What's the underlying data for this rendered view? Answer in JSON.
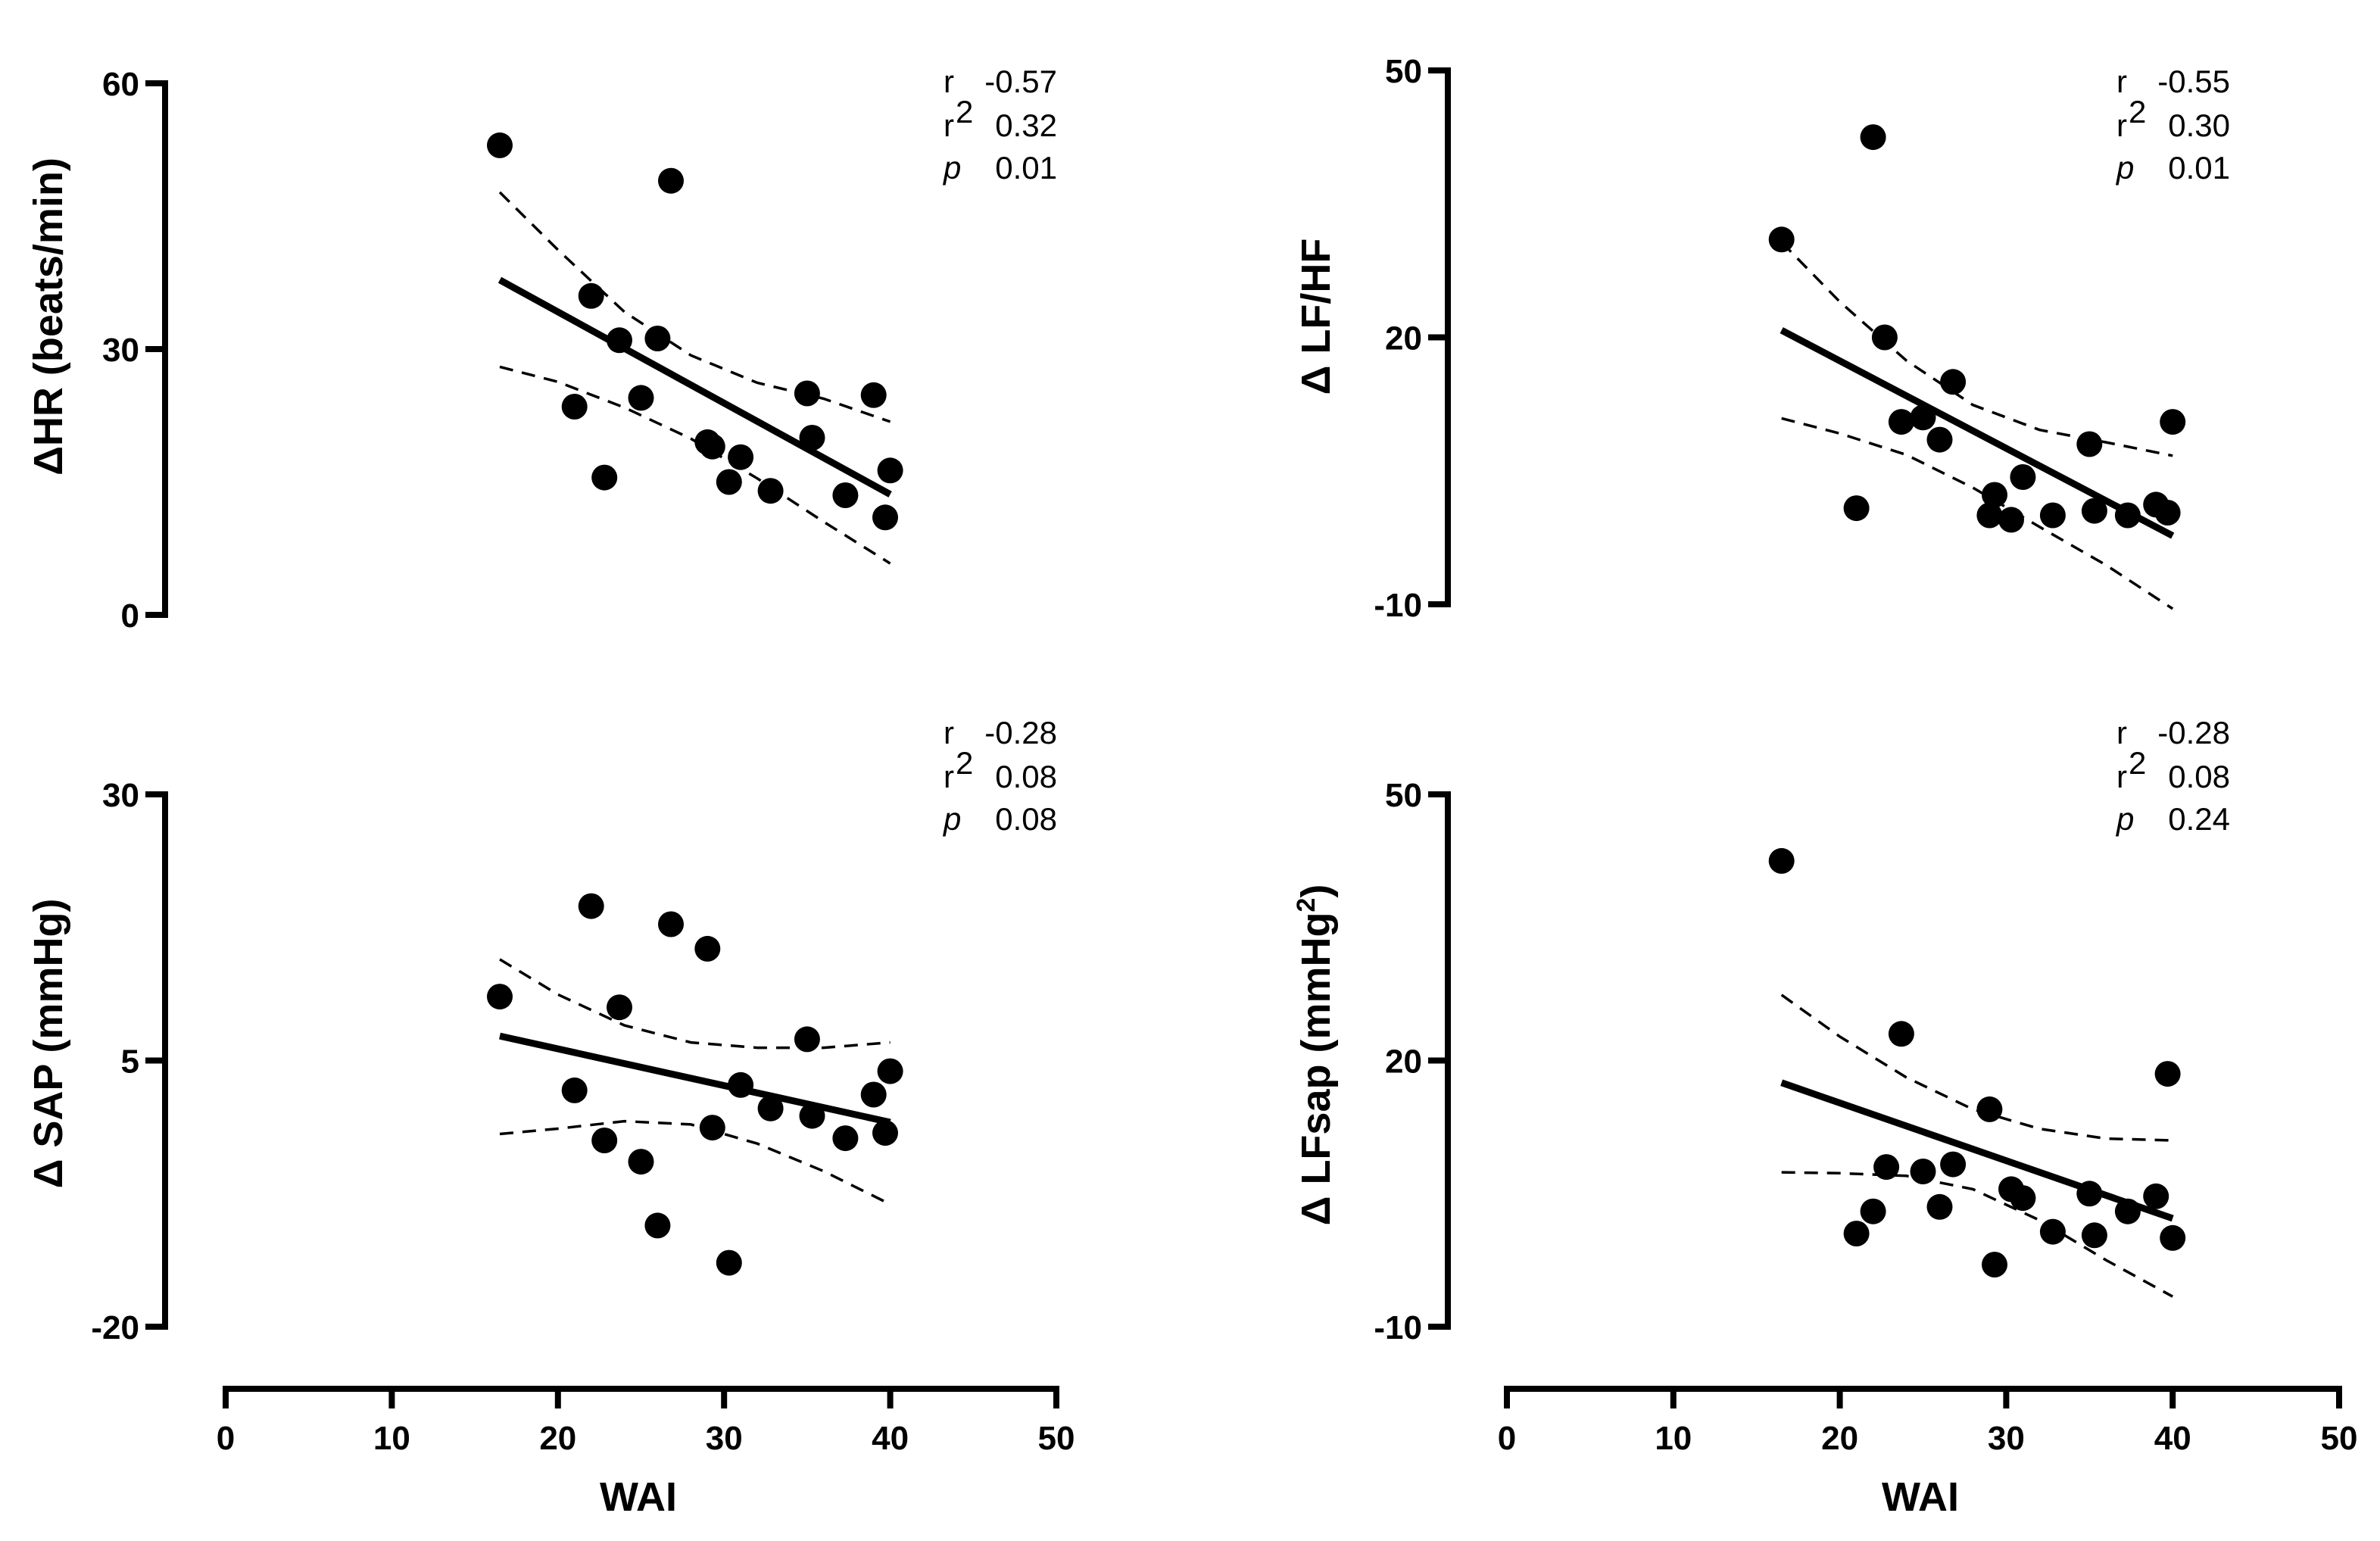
{
  "chart_data": [
    {
      "type": "scatter",
      "ylabel": "ΔHR (beats/min)",
      "ylim": [
        0,
        60
      ],
      "yticks": [
        0,
        30,
        60
      ],
      "xlim": [
        0,
        50
      ],
      "stats": {
        "r_label": "r",
        "r": "-0.57",
        "r2_label": "r",
        "r2_sup": "2",
        "r2": "0.32",
        "p_label": "p",
        "p": "0.01"
      },
      "points": [
        [
          16.5,
          53
        ],
        [
          21,
          23.5
        ],
        [
          22,
          36
        ],
        [
          22.8,
          15.5
        ],
        [
          23.7,
          31
        ],
        [
          25,
          24.5
        ],
        [
          26,
          31.2
        ],
        [
          26.8,
          49
        ],
        [
          29,
          19.5
        ],
        [
          29.3,
          19
        ],
        [
          30.3,
          15
        ],
        [
          31,
          17.8
        ],
        [
          32.8,
          14
        ],
        [
          35,
          25
        ],
        [
          35.3,
          20
        ],
        [
          37.3,
          13.5
        ],
        [
          39,
          24.8
        ],
        [
          39.7,
          11
        ],
        [
          40,
          16.3
        ]
      ],
      "fit": [
        [
          16.5,
          37.8
        ],
        [
          40,
          13.6
        ]
      ],
      "ci_upper": [
        [
          16.5,
          47.7
        ],
        [
          20,
          41.2
        ],
        [
          24,
          34.2
        ],
        [
          28,
          29.3
        ],
        [
          32,
          26.2
        ],
        [
          36,
          24.4
        ],
        [
          40,
          21.8
        ]
      ],
      "ci_lower": [
        [
          16.5,
          28
        ],
        [
          20,
          26.3
        ],
        [
          24,
          23.4
        ],
        [
          28,
          19.9
        ],
        [
          32,
          15.4
        ],
        [
          36,
          10.5
        ],
        [
          40,
          5.8
        ]
      ]
    },
    {
      "type": "scatter",
      "ylabel": "Δ LF/HF",
      "ylim": [
        -10,
        50
      ],
      "yticks": [
        -10,
        20,
        50
      ],
      "xlim": [
        0,
        50
      ],
      "stats": {
        "r_label": "r",
        "r": "-0.55",
        "r2_label": "r",
        "r2_sup": "2",
        "r2": "0.30",
        "p_label": "p",
        "p": "0.01"
      },
      "points": [
        [
          16.5,
          31
        ],
        [
          21,
          0.8
        ],
        [
          22,
          42.5
        ],
        [
          22.7,
          20
        ],
        [
          23.7,
          10.5
        ],
        [
          25,
          11
        ],
        [
          26,
          8.5
        ],
        [
          26.8,
          15
        ],
        [
          29,
          0
        ],
        [
          29.3,
          2.3
        ],
        [
          30.3,
          -0.5
        ],
        [
          31,
          4.3
        ],
        [
          32.8,
          0
        ],
        [
          35,
          8
        ],
        [
          35.3,
          0.5
        ],
        [
          37.3,
          0
        ],
        [
          39,
          1.2
        ],
        [
          39.7,
          0.3
        ],
        [
          40,
          10.5
        ]
      ],
      "fit": [
        [
          16.5,
          20.8
        ],
        [
          40,
          -2.3
        ]
      ],
      "ci_upper": [
        [
          16.5,
          30.7
        ],
        [
          20,
          24
        ],
        [
          24,
          17.4
        ],
        [
          28,
          12.4
        ],
        [
          32,
          9.6
        ],
        [
          36,
          8.2
        ],
        [
          40,
          6.7
        ]
      ],
      "ci_lower": [
        [
          16.5,
          10.9
        ],
        [
          20,
          9.2
        ],
        [
          24,
          6.8
        ],
        [
          28,
          3.1
        ],
        [
          32,
          -1.3
        ],
        [
          36,
          -5.6
        ],
        [
          40,
          -10.5
        ]
      ]
    },
    {
      "type": "scatter",
      "ylabel": "Δ SAP (mmHg)",
      "ylim": [
        -20,
        30
      ],
      "yticks": [
        -20,
        5,
        30
      ],
      "xlim": [
        0,
        50
      ],
      "stats": {
        "r_label": "r",
        "r": "-0.28",
        "r2_label": "r",
        "r2_sup": "2",
        "r2": "0.08",
        "p_label": "p",
        "p": "0.08"
      },
      "points": [
        [
          16.5,
          11
        ],
        [
          21,
          2.2
        ],
        [
          22,
          19.5
        ],
        [
          22.8,
          -2.5
        ],
        [
          23.7,
          10
        ],
        [
          25,
          -4.5
        ],
        [
          26,
          -10.5
        ],
        [
          26.8,
          17.8
        ],
        [
          29,
          15.5
        ],
        [
          29.3,
          -1.3
        ],
        [
          30.3,
          -14
        ],
        [
          31,
          2.7
        ],
        [
          32.8,
          0.5
        ],
        [
          35,
          7
        ],
        [
          35.3,
          -0.2
        ],
        [
          37.3,
          -2.3
        ],
        [
          39,
          1.8
        ],
        [
          39.7,
          -1.8
        ],
        [
          40,
          4
        ]
      ],
      "fit": [
        [
          16.5,
          7.3
        ],
        [
          40,
          -0.8
        ]
      ],
      "ci_upper": [
        [
          16.5,
          14.5
        ],
        [
          20,
          11.2
        ],
        [
          24,
          8.3
        ],
        [
          28,
          6.7
        ],
        [
          32,
          6.2
        ],
        [
          36,
          6.2
        ],
        [
          40,
          6.7
        ]
      ],
      "ci_lower": [
        [
          16.5,
          -1.9
        ],
        [
          20,
          -1.4
        ],
        [
          24,
          -0.7
        ],
        [
          28,
          -1
        ],
        [
          32,
          -2.8
        ],
        [
          36,
          -5.4
        ],
        [
          40,
          -8.5
        ]
      ]
    },
    {
      "type": "scatter",
      "ylabel": "Δ LFsap (mmHg²)",
      "ylim": [
        -10,
        50
      ],
      "yticks": [
        -10,
        20,
        50
      ],
      "xlim": [
        0,
        50
      ],
      "stats": {
        "r_label": "r",
        "r": "-0.28",
        "r2_label": "r",
        "r2_sup": "2",
        "r2": "0.08",
        "p_label": "p",
        "p": "0.24"
      },
      "points": [
        [
          16.5,
          42.5
        ],
        [
          21,
          0.5
        ],
        [
          22,
          3
        ],
        [
          22.8,
          8
        ],
        [
          23.7,
          23
        ],
        [
          25,
          7.5
        ],
        [
          26,
          3.5
        ],
        [
          26.8,
          8.3
        ],
        [
          29,
          14.5
        ],
        [
          29.3,
          -3
        ],
        [
          30.3,
          5.5
        ],
        [
          31,
          4.5
        ],
        [
          32.8,
          0.7
        ],
        [
          35,
          5
        ],
        [
          35.3,
          0.3
        ],
        [
          37.3,
          3
        ],
        [
          39,
          4.7
        ],
        [
          39.7,
          18.5
        ],
        [
          40,
          0
        ]
      ],
      "fit": [
        [
          16.5,
          17.5
        ],
        [
          40,
          2.2
        ]
      ],
      "ci_upper": [
        [
          16.5,
          27.4
        ],
        [
          20,
          22.7
        ],
        [
          24,
          18.1
        ],
        [
          28,
          14.5
        ],
        [
          32,
          12.3
        ],
        [
          36,
          11.2
        ],
        [
          40,
          11
        ]
      ],
      "ci_lower": [
        [
          16.5,
          7.4
        ],
        [
          20,
          7.3
        ],
        [
          24,
          7
        ],
        [
          28,
          5.5
        ],
        [
          32,
          2
        ],
        [
          36,
          -2.5
        ],
        [
          40,
          -6.6
        ]
      ]
    }
  ],
  "xaxis": {
    "label": "WAI",
    "ticks": [
      0,
      10,
      20,
      30,
      40,
      50
    ]
  }
}
